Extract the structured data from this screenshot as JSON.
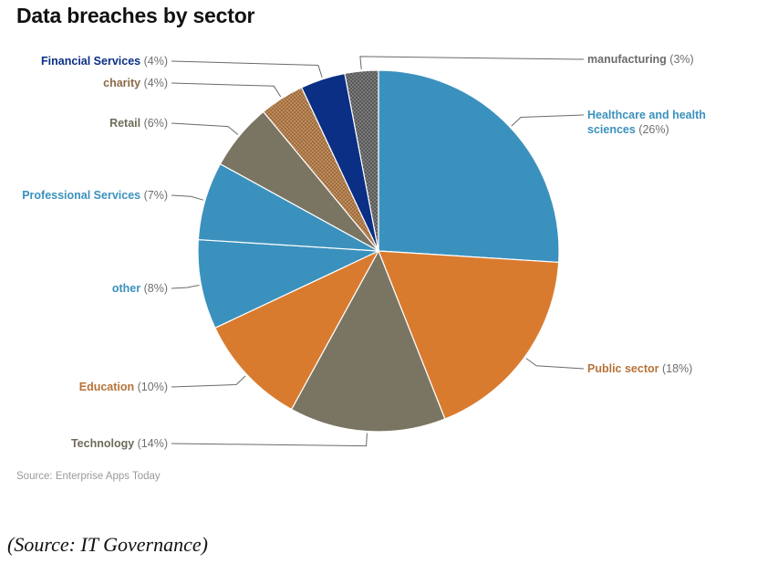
{
  "chart_data": {
    "type": "pie",
    "title": "Data breaches by sector",
    "source_note": "Source: Enterprise Apps Today",
    "unit": "%",
    "slices": [
      {
        "label": "Healthcare and health sciences",
        "value": 26,
        "color": "#3b91bd",
        "pattern": false
      },
      {
        "label": "Public sector",
        "value": 18,
        "color": "#d97b2f",
        "pattern": false
      },
      {
        "label": "Technology",
        "value": 14,
        "color": "#7a7562",
        "pattern": false
      },
      {
        "label": "Education",
        "value": 10,
        "color": "#d97b2f",
        "pattern": false
      },
      {
        "label": "other",
        "value": 8,
        "color": "#3b91bd",
        "pattern": false
      },
      {
        "label": "Professional Services",
        "value": 7,
        "color": "#3b91bd",
        "pattern": false
      },
      {
        "label": "Retail",
        "value": 6,
        "color": "#7a7562",
        "pattern": false
      },
      {
        "label": "charity",
        "value": 4,
        "color": "#b8804f",
        "pattern": true
      },
      {
        "label": "Financial Services",
        "value": 4,
        "color": "#0a2f84",
        "pattern": false
      },
      {
        "label": "manufacturing",
        "value": 3,
        "color": "#6f6f6f",
        "pattern": true
      }
    ],
    "labels": [
      {
        "name": "Healthcare and health",
        "line2": "sciences",
        "pct": "(26%)",
        "color": "#3b91bd"
      },
      {
        "name": "Public sector",
        "line2": "",
        "pct": "(18%)",
        "color": "#b6733a"
      },
      {
        "name": "Technology",
        "line2": "",
        "pct": "(14%)",
        "color": "#6f6b5a"
      },
      {
        "name": "Education",
        "line2": "",
        "pct": "(10%)",
        "color": "#b6733a"
      },
      {
        "name": "other",
        "line2": "",
        "pct": "(8%)",
        "color": "#3b91bd"
      },
      {
        "name": "Professional Services",
        "line2": "",
        "pct": "(7%)",
        "color": "#3b91bd"
      },
      {
        "name": "Retail",
        "line2": "",
        "pct": "(6%)",
        "color": "#6f6b5a"
      },
      {
        "name": "charity",
        "line2": "",
        "pct": "(4%)",
        "color": "#8a6a47"
      },
      {
        "name": "Financial Services",
        "line2": "",
        "pct": "(4%)",
        "color": "#0a2f84"
      },
      {
        "name": "manufacturing",
        "line2": "",
        "pct": "(3%)",
        "color": "#6b6b6b"
      }
    ]
  },
  "caption": "(Source: IT Governance)"
}
